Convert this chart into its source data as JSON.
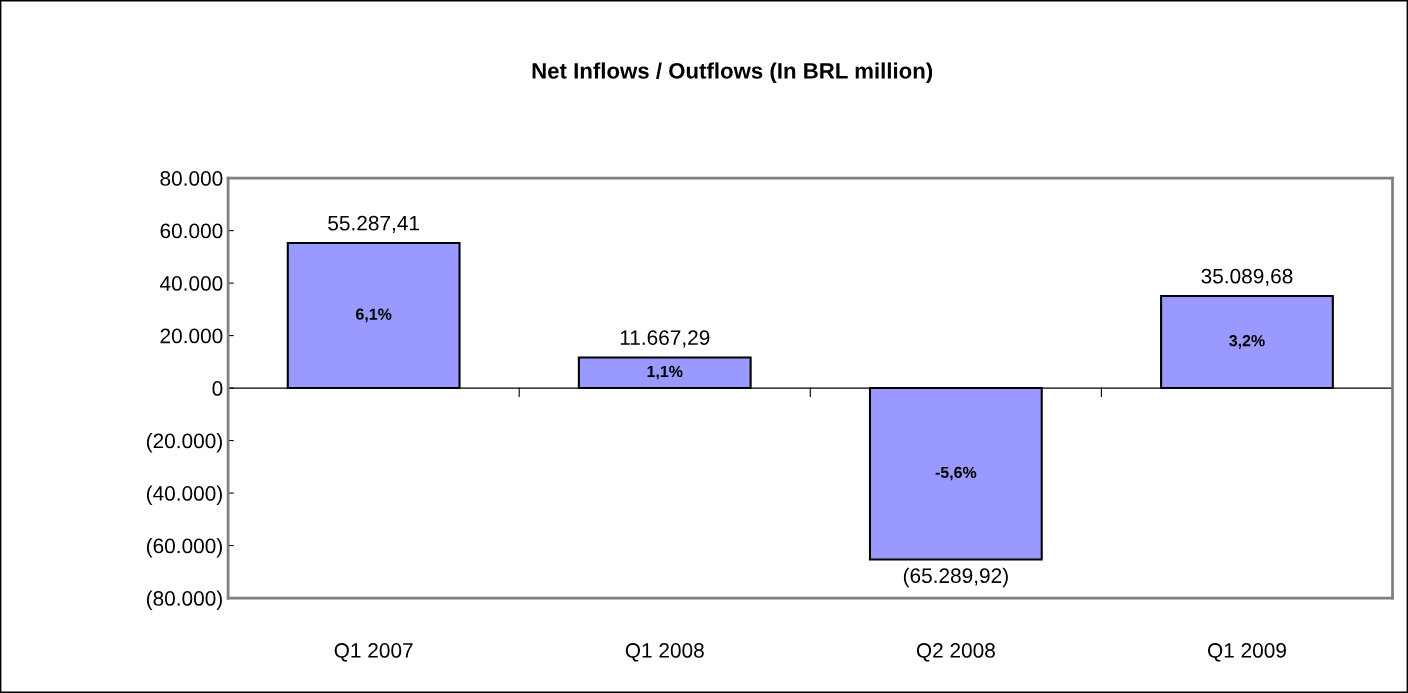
{
  "chart_data": {
    "type": "bar",
    "title": "Net Inflows / Outflows (In BRL million)",
    "categories": [
      "Q1 2007",
      "Q1 2008",
      "Q2 2008",
      "Q1 2009"
    ],
    "values": [
      55287.41,
      11667.29,
      -65289.92,
      35089.68
    ],
    "value_labels": [
      "55.287,41",
      "11.667,29",
      "(65.289,92)",
      "35.089,68"
    ],
    "color": "#9999ff",
    "ylim": [
      -80000,
      80000
    ],
    "yticks": [
      {
        "value": -80000,
        "label": "(80.000)"
      },
      {
        "value": -60000,
        "label": "(60.000)"
      },
      {
        "value": -40000,
        "label": "(40.000)"
      },
      {
        "value": -20000,
        "label": "(20.000)"
      },
      0,
      {
        "value": 20000,
        "label": "20.000"
      },
      {
        "value": 40000,
        "label": "40.000"
      },
      {
        "value": 60000,
        "label": "60.000"
      },
      {
        "value": 80000,
        "label": "80.000"
      }
    ],
    "annotations": [
      "6,1%",
      "1,1%",
      "-5,6%",
      "3,2%"
    ]
  }
}
